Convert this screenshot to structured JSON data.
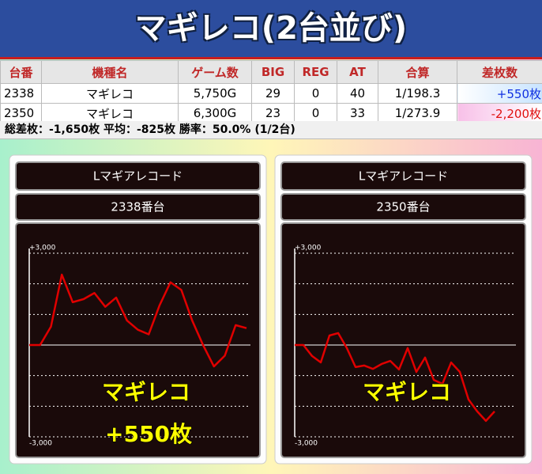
{
  "header": {
    "title": "マギレコ(2台並び)"
  },
  "table": {
    "headers": [
      "台番",
      "機種名",
      "ゲーム数",
      "BIG",
      "REG",
      "AT",
      "合算",
      "差枚数"
    ],
    "rows": [
      [
        "2338",
        "マギレコ",
        "5,750G",
        "29",
        "0",
        "40",
        "1/198.3",
        "+550枚"
      ],
      [
        "2350",
        "マギレコ",
        "6,300G",
        "23",
        "0",
        "33",
        "1/273.9",
        "-2,200枚"
      ]
    ],
    "summary": "総差枚：-1,650枚 平均：-825枚 勝率：50.0% (1/2台)"
  },
  "panels": [
    {
      "machine": "Lマギアレコード",
      "unit": "2338番台",
      "overlay": [
        "マギレコ",
        "+550枚"
      ],
      "chart": {
        "type": "line",
        "color": "#e00000",
        "ylim": [
          -3000,
          3000
        ],
        "yticks": [
          {
            "value": 3000,
            "label": "+3,000"
          },
          {
            "value": -3000,
            "label": "-3,000"
          }
        ],
        "gridlines": [
          2000,
          1000,
          0,
          -1000,
          -2000
        ],
        "values": [
          0,
          0,
          600,
          2300,
          1400,
          1500,
          1700,
          1250,
          1550,
          800,
          500,
          350,
          1300,
          2050,
          1800,
          800,
          0,
          -700,
          -350,
          650,
          550
        ]
      }
    },
    {
      "machine": "Lマギアレコード",
      "unit": "2350番台",
      "overlay": [
        "マギレコ"
      ],
      "chart": {
        "type": "line",
        "color": "#e00000",
        "ylim": [
          -3000,
          3000
        ],
        "yticks": [
          {
            "value": 3000,
            "label": "+3,000"
          },
          {
            "value": -3000,
            "label": "-3,000"
          }
        ],
        "gridlines": [
          2000,
          1000,
          0,
          -1000,
          -2000
        ],
        "values": [
          0,
          0,
          -360,
          -570,
          310,
          390,
          -100,
          -720,
          -670,
          -780,
          -620,
          -520,
          -800,
          -100,
          -880,
          -410,
          -1140,
          -1270,
          -570,
          -880,
          -1780,
          -2170,
          -2480,
          -2170
        ]
      }
    }
  ]
}
